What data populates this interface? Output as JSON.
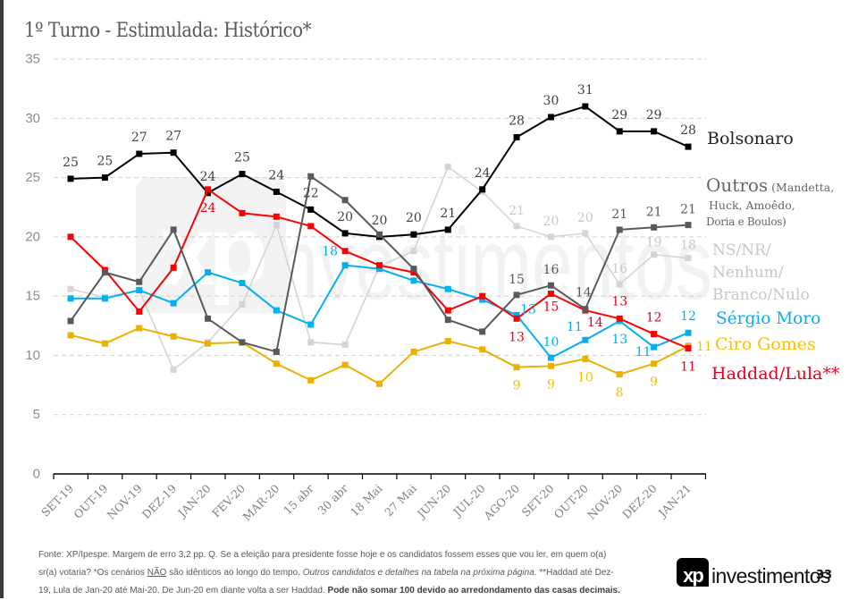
{
  "slide": {
    "title": "1º Turno - Estimulada: Histórico*",
    "page_number": "33"
  },
  "watermark": {
    "mark": "xp",
    "text": "investimentos"
  },
  "logo": {
    "mark": "xp",
    "text": "investimentos"
  },
  "legend": {
    "bolsonaro": "Bolsonaro",
    "outros_main": "Outros",
    "outros_sub1": " (Mandetta,",
    "outros_sub2": "Huck, Amoêdo,",
    "outros_sub3": "Doria e Boulos)",
    "ns_line1": "NS/NR/",
    "ns_line2": "Nenhum/",
    "ns_line3": "Branco/Nulo",
    "moro": "Sérgio Moro",
    "ciro": "Ciro Gomes",
    "haddad": "Haddad/Lula**"
  },
  "footer": {
    "line1": "Fonte: XP/Ipespe. Margem de erro 3,2 pp. Q. Se a eleição para presidente fosse hoje e os candidatos fossem esses que vou ler, em quem o(a)",
    "line2_a": "sr(a) votaria? *Os cenários ",
    "line2_underline": "NÃO",
    "line2_b": " são idênticos ao longo do tempo. ",
    "line2_italic": "Outros candidatos e detalhes na tabela na próxima página",
    "line2_c": ". **Haddad até Dez-",
    "line3_a": "19, Lula de Jan-20 até Mai-20. De Jun-20 em diante volta a ser Haddad. ",
    "line3_bold": "Pode não somar 100 devido ao arredondamento das casas decimais."
  },
  "chart_data": {
    "type": "line",
    "title": "1º Turno - Estimulada: Histórico*",
    "xlabel": "",
    "ylabel": "",
    "ylim": [
      0,
      35
    ],
    "yticks": [
      0,
      5,
      10,
      15,
      20,
      25,
      30,
      35
    ],
    "grid": true,
    "legend_placement": "right",
    "categories": [
      "SET-19",
      "OUT-19",
      "NOV-19",
      "DEZ-19",
      "JAN-20",
      "FEV-20",
      "MAR-20",
      "15 abr",
      "30 abr",
      "18 Mai",
      "27 Mai",
      "JUN-20",
      "JUL-20",
      "AGO-20",
      "SET-20",
      "OUT-20",
      "NOV-20",
      "DEZ-20",
      "JAN-21"
    ],
    "series": [
      {
        "key": "bolsonaro",
        "name": "Bolsonaro",
        "color": "#000000",
        "label_color": "#404040",
        "values": [
          24.9,
          25.0,
          27.0,
          27.1,
          23.7,
          25.3,
          23.8,
          22.3,
          20.3,
          20.0,
          20.2,
          20.6,
          24.0,
          28.4,
          30.1,
          31.0,
          28.9,
          28.9,
          27.6
        ],
        "labels": [
          "25",
          "25",
          "27",
          "27",
          "24",
          "25",
          "24",
          "22",
          "20",
          "20",
          "20",
          "21",
          "24",
          "28",
          "30",
          "31",
          "29",
          "29",
          "28"
        ]
      },
      {
        "key": "outros",
        "name": "Outros (Mandetta, Huck, Amoêdo, Doria e Boulos)",
        "color": "#595959",
        "label_color": "#595959",
        "values": [
          12.9,
          17.0,
          16.2,
          20.6,
          13.1,
          11.1,
          10.3,
          25.1,
          23.1,
          20.2,
          17.3,
          13.0,
          12.0,
          15.1,
          15.9,
          13.9,
          20.6,
          20.8,
          21.0
        ],
        "labels": [
          null,
          null,
          null,
          null,
          null,
          null,
          null,
          null,
          null,
          null,
          null,
          null,
          null,
          "15",
          "16",
          "14",
          "21",
          "21",
          "21"
        ]
      },
      {
        "key": "ns",
        "name": "NS/NR/Nenhum/Branco/Nulo",
        "color": "#d4d4d4",
        "label_color": "#c8c8c8",
        "values": [
          15.6,
          14.9,
          15.5,
          8.8,
          11.1,
          14.3,
          21.0,
          11.1,
          10.9,
          17.5,
          18.8,
          25.9,
          23.8,
          20.9,
          20.0,
          20.3,
          16.0,
          18.5,
          18.2
        ],
        "labels": [
          null,
          null,
          null,
          null,
          null,
          null,
          null,
          null,
          null,
          null,
          null,
          null,
          null,
          "21",
          "20",
          "20",
          "16",
          "19",
          "18"
        ]
      },
      {
        "key": "moro",
        "name": "Sérgio Moro",
        "color": "#00b0f0",
        "label_color": "#00b0f0",
        "values": [
          14.8,
          14.8,
          15.5,
          14.4,
          17.0,
          16.1,
          13.8,
          12.6,
          17.6,
          17.3,
          16.3,
          15.6,
          14.7,
          13.4,
          9.8,
          11.3,
          12.9,
          10.7,
          11.9
        ],
        "labels": [
          null,
          null,
          null,
          null,
          null,
          null,
          null,
          null,
          "18",
          null,
          null,
          null,
          null,
          "13",
          "10",
          "11",
          "13",
          "11",
          "12"
        ]
      },
      {
        "key": "ciro",
        "name": "Ciro Gomes",
        "color": "#ebb000",
        "label_color": "#f5c000",
        "values": [
          11.7,
          11.0,
          12.3,
          11.6,
          11.0,
          11.1,
          9.3,
          7.9,
          9.2,
          7.6,
          10.3,
          11.2,
          10.5,
          9.0,
          9.1,
          9.7,
          8.4,
          9.3,
          10.8
        ],
        "labels": [
          null,
          null,
          null,
          null,
          null,
          null,
          null,
          null,
          null,
          null,
          null,
          null,
          null,
          "9",
          "9",
          "10",
          "8",
          "9",
          "11"
        ]
      },
      {
        "key": "haddad",
        "name": "Haddad/Lula**",
        "color": "#ff0000",
        "label_color": "#e8001c",
        "values": [
          20.0,
          17.2,
          13.7,
          17.4,
          24.0,
          22.0,
          21.7,
          20.9,
          18.8,
          17.6,
          17.0,
          13.8,
          15.0,
          13.1,
          15.2,
          13.8,
          13.1,
          11.8,
          10.6
        ],
        "labels": [
          null,
          null,
          null,
          null,
          "24",
          null,
          null,
          null,
          null,
          null,
          null,
          null,
          null,
          "13",
          "15",
          "14",
          "13",
          "12",
          "11"
        ]
      }
    ]
  }
}
